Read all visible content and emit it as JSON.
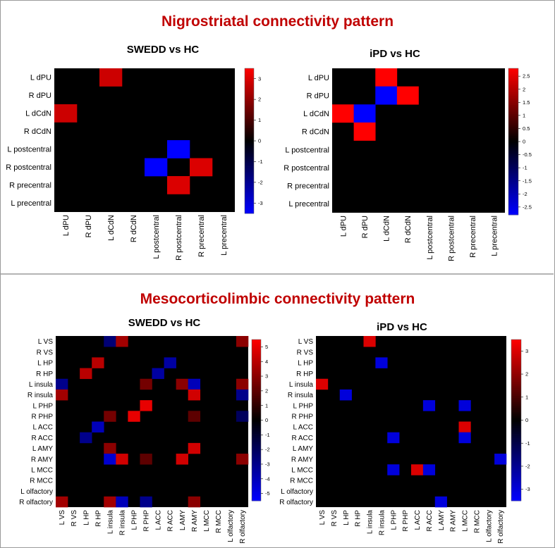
{
  "sections": [
    {
      "title": "Nigrostriatal connectivity pattern"
    },
    {
      "title": "Mesocorticolimbic connectivity pattern"
    }
  ],
  "chart_data": [
    {
      "type": "heatmap",
      "title": "SWEDD vs HC",
      "rows": [
        "L dPU",
        "R dPU",
        "L dCdN",
        "R dCdN",
        "L postcentral",
        "R postcentral",
        "R precentral",
        "L precentral"
      ],
      "cols": [
        "L dPU",
        "R dPU",
        "L dCdN",
        "R dCdN",
        "L postcentral",
        "R postcentral",
        "R precentral",
        "L precentral"
      ],
      "values": [
        [
          0,
          0,
          2.8,
          0,
          0,
          0,
          0,
          0
        ],
        [
          0,
          0,
          0,
          0,
          0,
          0,
          0,
          0
        ],
        [
          2.8,
          0,
          0,
          0,
          0,
          0,
          0,
          0
        ],
        [
          0,
          0,
          0,
          0,
          0,
          0,
          0,
          0
        ],
        [
          0,
          0,
          0,
          0,
          0,
          -3.5,
          0,
          0
        ],
        [
          0,
          0,
          0,
          0,
          -3.5,
          0,
          3.0,
          0
        ],
        [
          0,
          0,
          0,
          0,
          0,
          3.0,
          0,
          0
        ],
        [
          0,
          0,
          0,
          0,
          0,
          0,
          0,
          0
        ]
      ],
      "colorbar": {
        "min": -3.5,
        "max": 3.5,
        "ticks": [
          3,
          2,
          1,
          0,
          -1,
          -2,
          -3
        ]
      }
    },
    {
      "type": "heatmap",
      "title": "iPD vs HC",
      "rows": [
        "L dPU",
        "R dPU",
        "L dCdN",
        "R dCdN",
        "L postcentral",
        "R postcentral",
        "R precentral",
        "L precentral"
      ],
      "cols": [
        "L dPU",
        "R dPU",
        "L dCdN",
        "R dCdN",
        "L postcentral",
        "R postcentral",
        "R precentral",
        "L precentral"
      ],
      "values": [
        [
          0,
          0,
          2.8,
          0,
          0,
          0,
          0,
          0
        ],
        [
          0,
          0,
          -2.8,
          2.8,
          0,
          0,
          0,
          0
        ],
        [
          2.8,
          -2.8,
          0,
          0,
          0,
          0,
          0,
          0
        ],
        [
          0,
          2.8,
          0,
          0,
          0,
          0,
          0,
          0
        ],
        [
          0,
          0,
          0,
          0,
          0,
          0,
          0,
          0
        ],
        [
          0,
          0,
          0,
          0,
          0,
          0,
          0,
          0
        ],
        [
          0,
          0,
          0,
          0,
          0,
          0,
          0,
          0
        ],
        [
          0,
          0,
          0,
          0,
          0,
          0,
          0,
          0
        ]
      ],
      "colorbar": {
        "min": -2.8,
        "max": 2.8,
        "ticks": [
          2.5,
          2,
          1.5,
          1,
          0.5,
          0,
          -0.5,
          -1,
          -1.5,
          -2,
          -2.5
        ]
      }
    },
    {
      "type": "heatmap",
      "title": "SWEDD vs HC",
      "rows": [
        "L VS",
        "R VS",
        "L HP",
        "R HP",
        "L insula",
        "R insula",
        "L PHP",
        "R PHP",
        "L ACC",
        "R ACC",
        "L AMY",
        "R AMY",
        "L MCC",
        "R MCC",
        "L olfactory",
        "R olfactory"
      ],
      "cols": [
        "L VS",
        "R VS",
        "L HP",
        "R HP",
        "L insula",
        "R insula",
        "L PHP",
        "R PHP",
        "L ACC",
        "R ACC",
        "L AMY",
        "R AMY",
        "L MCC",
        "R MCC",
        "L olfactory",
        "R olfactory"
      ],
      "values": [
        [
          0,
          0,
          0,
          0,
          -2.5,
          3.5,
          0,
          0,
          0,
          0,
          0,
          0,
          0,
          0,
          0,
          3.0
        ],
        [
          0,
          0,
          0,
          0,
          0,
          0,
          0,
          0,
          0,
          0,
          0,
          0,
          0,
          0,
          0,
          0
        ],
        [
          0,
          0,
          0,
          4.0,
          0,
          0,
          0,
          0,
          0,
          -3.5,
          0,
          0,
          0,
          0,
          0,
          0
        ],
        [
          0,
          0,
          4.0,
          0,
          0,
          0,
          0,
          0,
          -3.5,
          0,
          0,
          0,
          0,
          0,
          0,
          0
        ],
        [
          -3.0,
          0,
          0,
          0,
          0,
          0,
          0,
          2.5,
          0,
          0,
          3.0,
          -4.0,
          0,
          0,
          0,
          3.0
        ],
        [
          3.5,
          0,
          0,
          0,
          0,
          0,
          0,
          0,
          0,
          0,
          0,
          4.5,
          0,
          0,
          0,
          -3.0
        ],
        [
          0,
          0,
          0,
          0,
          0,
          0,
          0,
          5.0,
          0,
          0,
          0,
          0,
          0,
          0,
          0,
          0
        ],
        [
          0,
          0,
          0,
          0,
          2.5,
          0,
          5.0,
          0,
          0,
          0,
          0,
          2.0,
          0,
          0,
          0,
          -2.0
        ],
        [
          0,
          0,
          0,
          -4.0,
          0,
          0,
          0,
          0,
          0,
          0,
          0,
          0,
          0,
          0,
          0,
          0
        ],
        [
          0,
          0,
          -3.0,
          0,
          0,
          0,
          0,
          0,
          0,
          0,
          0,
          0,
          0,
          0,
          0,
          0
        ],
        [
          0,
          0,
          0,
          0,
          3.0,
          0,
          0,
          0,
          0,
          0,
          0,
          4.5,
          0,
          0,
          0,
          0
        ],
        [
          0,
          0,
          0,
          0,
          -4.5,
          4.5,
          0,
          2.0,
          0,
          0,
          4.5,
          0,
          0,
          0,
          0,
          3.0
        ],
        [
          0,
          0,
          0,
          0,
          0,
          0,
          0,
          0,
          0,
          0,
          0,
          0,
          0,
          0,
          0,
          0
        ],
        [
          0,
          0,
          0,
          0,
          0,
          0,
          0,
          0,
          0,
          0,
          0,
          0,
          0,
          0,
          0,
          0
        ],
        [
          0,
          0,
          0,
          0,
          0,
          0,
          0,
          0,
          0,
          0,
          0,
          0,
          0,
          0,
          0,
          0
        ],
        [
          3.5,
          0,
          0,
          0,
          3.5,
          -4.0,
          0,
          -3.0,
          0,
          0,
          0,
          3.0,
          0,
          0,
          0,
          0
        ]
      ],
      "colorbar": {
        "min": -5.5,
        "max": 5.5,
        "ticks": [
          5,
          4,
          3,
          2,
          1,
          0,
          -1,
          -2,
          -3,
          -4,
          -5
        ]
      }
    },
    {
      "type": "heatmap",
      "title": "iPD vs HC",
      "rows": [
        "L VS",
        "R VS",
        "L HP",
        "R HP",
        "L insula",
        "R insula",
        "L PHP",
        "R PHP",
        "L ACC",
        "R ACC",
        "L AMY",
        "R AMY",
        "L MCC",
        "R MCC",
        "L olfactory",
        "R olfactory"
      ],
      "cols": [
        "L VS",
        "R VS",
        "L HP",
        "R HP",
        "L insula",
        "R insula",
        "L PHP",
        "R PHP",
        "L ACC",
        "R ACC",
        "L AMY",
        "R AMY",
        "L MCC",
        "R MCC",
        "L olfactory",
        "R olfactory"
      ],
      "values": [
        [
          0,
          0,
          0,
          0,
          3.0,
          0,
          0,
          0,
          0,
          0,
          0,
          0,
          0,
          0,
          0,
          0
        ],
        [
          0,
          0,
          0,
          0,
          0,
          0,
          0,
          0,
          0,
          0,
          0,
          0,
          0,
          0,
          0,
          0
        ],
        [
          0,
          0,
          0,
          0,
          0,
          -3.0,
          0,
          0,
          0,
          0,
          0,
          0,
          0,
          0,
          0,
          0
        ],
        [
          0,
          0,
          0,
          0,
          0,
          0,
          0,
          0,
          0,
          0,
          0,
          0,
          0,
          0,
          0,
          0
        ],
        [
          3.0,
          0,
          0,
          0,
          0,
          0,
          0,
          0,
          0,
          0,
          0,
          0,
          0,
          0,
          0,
          0
        ],
        [
          0,
          0,
          -3.0,
          0,
          0,
          0,
          0,
          0,
          0,
          0,
          0,
          0,
          0,
          0,
          0,
          0
        ],
        [
          0,
          0,
          0,
          0,
          0,
          0,
          0,
          0,
          0,
          -3.0,
          0,
          0,
          -3.0,
          0,
          0,
          0
        ],
        [
          0,
          0,
          0,
          0,
          0,
          0,
          0,
          0,
          0,
          0,
          0,
          0,
          0,
          0,
          0,
          0
        ],
        [
          0,
          0,
          0,
          0,
          0,
          0,
          0,
          0,
          0,
          0,
          0,
          0,
          3.0,
          0,
          0,
          0
        ],
        [
          0,
          0,
          0,
          0,
          0,
          0,
          -3.0,
          0,
          0,
          0,
          0,
          0,
          -3.0,
          0,
          0,
          0
        ],
        [
          0,
          0,
          0,
          0,
          0,
          0,
          0,
          0,
          0,
          0,
          0,
          0,
          0,
          0,
          0,
          0
        ],
        [
          0,
          0,
          0,
          0,
          0,
          0,
          0,
          0,
          0,
          0,
          0,
          0,
          0,
          0,
          0,
          -3.0
        ],
        [
          0,
          0,
          0,
          0,
          0,
          0,
          -3.0,
          0,
          3.0,
          -3.0,
          0,
          0,
          0,
          0,
          0,
          0
        ],
        [
          0,
          0,
          0,
          0,
          0,
          0,
          0,
          0,
          0,
          0,
          0,
          0,
          0,
          0,
          0,
          0
        ],
        [
          0,
          0,
          0,
          0,
          0,
          0,
          0,
          0,
          0,
          0,
          0,
          0,
          0,
          0,
          0,
          0
        ],
        [
          0,
          0,
          0,
          0,
          0,
          0,
          0,
          0,
          0,
          0,
          -3.0,
          0,
          0,
          0,
          0,
          0
        ]
      ],
      "colorbar": {
        "min": -3.5,
        "max": 3.5,
        "ticks": [
          3,
          2,
          1,
          0,
          -1,
          -2,
          -3
        ]
      }
    }
  ]
}
